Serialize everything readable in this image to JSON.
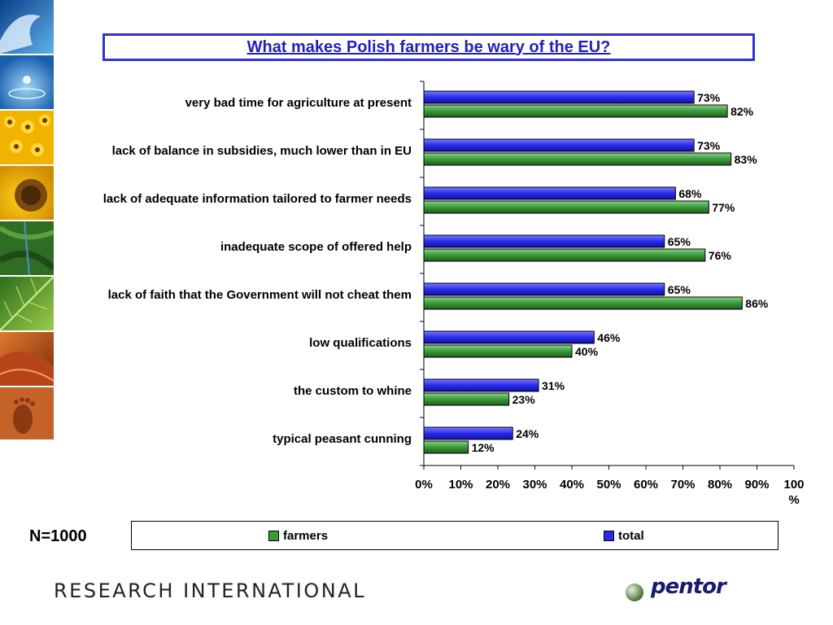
{
  "colors": {
    "farmers": "#3a9a3a",
    "total": "#2a2aee",
    "title": "#2222bb"
  },
  "side_images": [
    "wave-image",
    "water-drop-image",
    "sunflower-field-image",
    "sunflower-image",
    "green-field-image",
    "leaf-image",
    "desert-dunes-image",
    "footprint-image"
  ],
  "chart_data": {
    "type": "bar",
    "orientation": "horizontal",
    "title": "What makes Polish farmers be wary of the EU?",
    "categories": [
      "very bad time for agriculture at present",
      "lack of balance in subsidies, much lower than in EU",
      "lack of adequate information tailored to farmer needs",
      "inadequate scope of offered help",
      "lack of faith that the Government will not cheat them",
      "low qualifications",
      "the custom to whine",
      "typical peasant cunning"
    ],
    "series": [
      {
        "name": "total",
        "values": [
          73,
          73,
          68,
          65,
          65,
          46,
          31,
          24
        ]
      },
      {
        "name": "farmers",
        "values": [
          82,
          83,
          77,
          76,
          86,
          40,
          23,
          12
        ]
      }
    ],
    "value_labels": {
      "total": [
        "73%",
        "73%",
        "68%",
        "65%",
        "65%",
        "46%",
        "31%",
        "24%"
      ],
      "farmers": [
        "82%",
        "83%",
        "77%",
        "76%",
        "86%",
        "40%",
        "23%",
        "12%"
      ]
    },
    "xlim": [
      0,
      100
    ],
    "xticks": [
      "0%",
      "10%",
      "20%",
      "30%",
      "40%",
      "50%",
      "60%",
      "70%",
      "80%",
      "90%",
      "100",
      "%"
    ],
    "legend": [
      "farmers",
      "total"
    ],
    "legend_position": "bottom",
    "grid": false
  },
  "legend": {
    "farmers_label": "farmers",
    "total_label": "total"
  },
  "sample_note": "N=1000",
  "footer": {
    "brand": "RESEARCH INTERNATIONAL",
    "logo_text": "pentor"
  }
}
